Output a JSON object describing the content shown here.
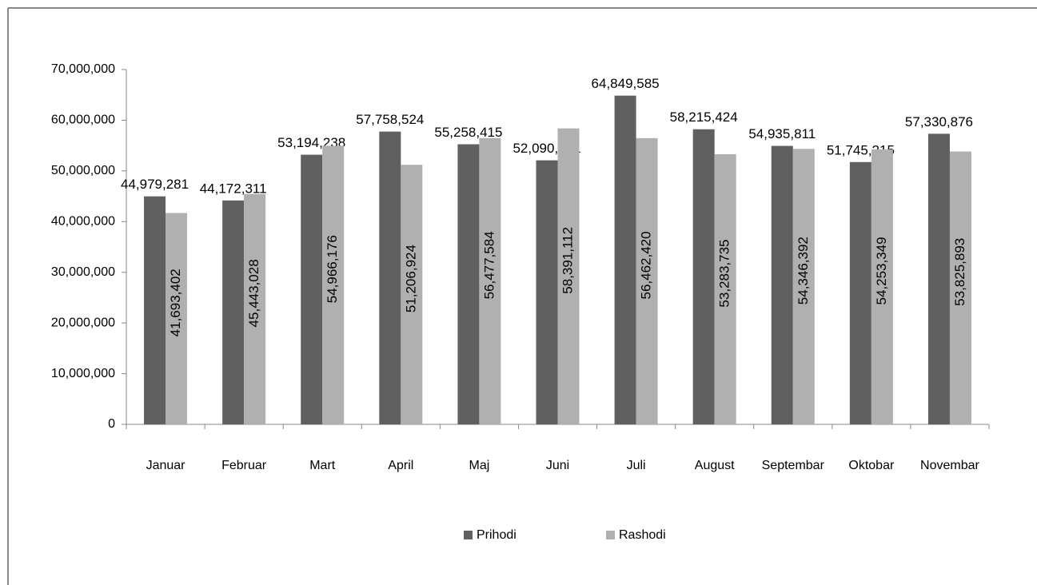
{
  "chart_data": {
    "type": "bar",
    "categories": [
      "Januar",
      "Februar",
      "Mart",
      "April",
      "Maj",
      "Juni",
      "Juli",
      "August",
      "Septembar",
      "Oktobar",
      "Novembar"
    ],
    "series": [
      {
        "name": "Prihodi",
        "color": "#606060",
        "values": [
          44979281,
          44172311,
          53194238,
          57758524,
          55258415,
          52090301,
          64849585,
          58215424,
          54935811,
          51745215,
          57330876
        ],
        "value_labels": [
          "44,979,281",
          "44,172,311",
          "53,194,238",
          "57,758,524",
          "55,258,415",
          "52,090,301",
          "64,849,585",
          "58,215,424",
          "54,935,811",
          "51,745,215",
          "57,330,876"
        ]
      },
      {
        "name": "Rashodi",
        "color": "#b0b0b0",
        "values": [
          41693402,
          45443028,
          54966176,
          51206924,
          56477584,
          58391112,
          56462420,
          53283735,
          54346392,
          54253349,
          53825893
        ],
        "value_labels": [
          "41,693,402",
          "45,443,028",
          "54,966,176",
          "51,206,924",
          "56,477,584",
          "58,391,112",
          "56,462,420",
          "53,283,735",
          "54,346,392",
          "54,253,349",
          "53,825,893"
        ]
      }
    ],
    "ylim": [
      0,
      70000000
    ],
    "yticks": [
      0,
      {
        "value": 10000000,
        "label": "10,000,000"
      },
      {
        "value": 20000000,
        "label": "20,000,000"
      },
      {
        "value": 30000000,
        "label": "30,000,000"
      },
      {
        "value": 40000000,
        "label": "40,000,000"
      },
      {
        "value": 50000000,
        "label": "50,000,000"
      },
      {
        "value": 60000000,
        "label": "60,000,000"
      },
      {
        "value": 70000000,
        "label": "70,000,000"
      }
    ],
    "grid": false,
    "legend": "bottom"
  }
}
